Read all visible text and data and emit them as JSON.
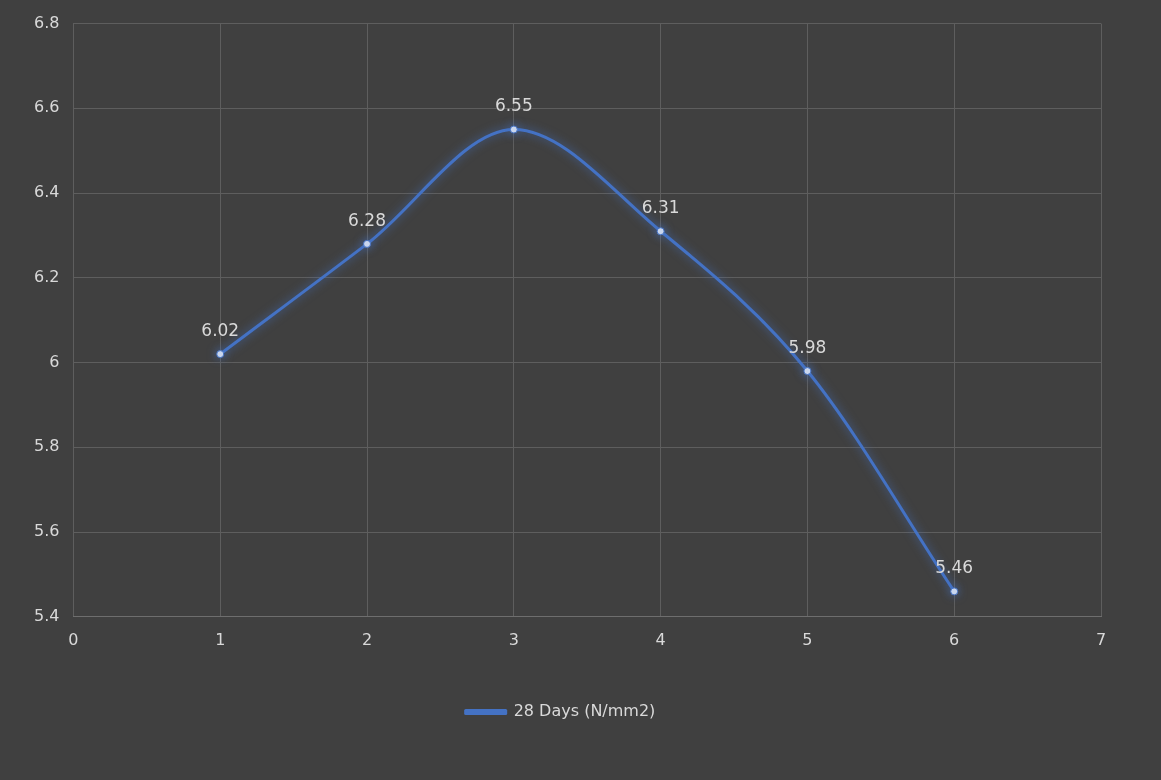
{
  "chart_data": {
    "type": "line",
    "x": [
      1,
      2,
      3,
      4,
      5,
      6
    ],
    "series": [
      {
        "name": "28 Days (N/mm2)",
        "color": "#4472c4",
        "values": [
          6.02,
          6.28,
          6.55,
          6.31,
          5.98,
          5.46
        ]
      }
    ],
    "xlim": [
      0,
      7
    ],
    "xticks": [
      0,
      1,
      2,
      3,
      4,
      5,
      6,
      7
    ],
    "ylim": [
      5.4,
      6.8
    ],
    "yticks": [
      5.4,
      5.6,
      5.8,
      6,
      6.2,
      6.4,
      6.6,
      6.8
    ],
    "grid": true,
    "legend": "bottom",
    "marker": "circle",
    "line_style": "solid",
    "data_labels": true
  }
}
